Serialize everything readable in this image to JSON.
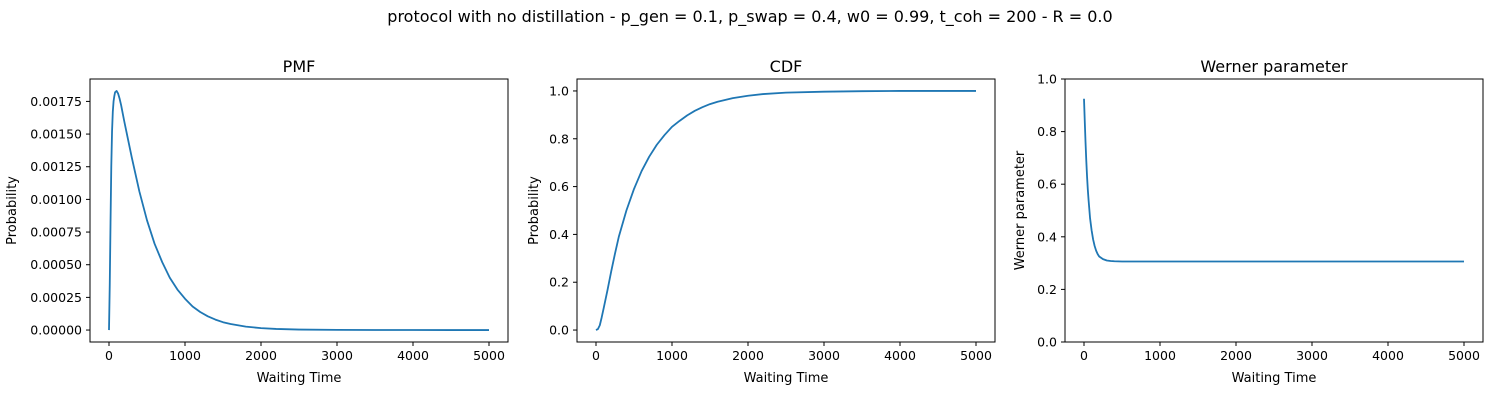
{
  "figure_title": "protocol with no distillation - p_gen = 0.1, p_swap = 0.4, w0 = 0.99, t_coh = 200 - R = 0.0",
  "line_color": "#1f77b4",
  "chart_data": [
    {
      "type": "line",
      "title": "PMF",
      "xlabel": "Waiting Time",
      "ylabel": "Probability",
      "xlim": [
        -250,
        5250
      ],
      "ylim": [
        -9.15e-05,
        0.0019215
      ],
      "xticks": [
        0,
        1000,
        2000,
        3000,
        4000,
        5000
      ],
      "xtick_labels": [
        "0",
        "1000",
        "2000",
        "3000",
        "4000",
        "5000"
      ],
      "yticks": [
        0,
        0.00025,
        0.0005,
        0.00075,
        0.001,
        0.00125,
        0.0015,
        0.00175
      ],
      "ytick_labels": [
        "0.00000",
        "0.00025",
        "0.00050",
        "0.00075",
        "0.00100",
        "0.00125",
        "0.00150",
        "0.00175"
      ],
      "series": [
        {
          "x": [
            0,
            10,
            20,
            30,
            40,
            50,
            60,
            70,
            80,
            100,
            120,
            140,
            160,
            180,
            200,
            250,
            300,
            350,
            400,
            450,
            500,
            600,
            700,
            800,
            900,
            1000,
            1100,
            1200,
            1300,
            1400,
            1500,
            1600,
            1800,
            2000,
            2200,
            2500,
            3000,
            3500,
            4000,
            4500,
            5000
          ],
          "y": [
            0,
            0.00035,
            0.00082,
            0.00125,
            0.00152,
            0.00167,
            0.00175,
            0.00179,
            0.00182,
            0.00183,
            0.00181,
            0.00177,
            0.00172,
            0.00166,
            0.0016,
            0.00146,
            0.00132,
            0.00119,
            0.00106,
            0.00095,
            0.00084,
            0.00066,
            0.00052,
            0.0004,
            0.00031,
            0.00024,
            0.00018,
            0.000138,
            0.000105,
            8e-05,
            6e-05,
            4.6e-05,
            2.6e-05,
            1.5e-05,
            8.5e-06,
            3.8e-06,
            1e-06,
            3e-07,
            1e-07,
            0,
            0
          ]
        }
      ]
    },
    {
      "type": "line",
      "title": "CDF",
      "xlabel": "Waiting Time",
      "ylabel": "Probability",
      "xlim": [
        -250,
        5250
      ],
      "ylim": [
        -0.05,
        1.05
      ],
      "xticks": [
        0,
        1000,
        2000,
        3000,
        4000,
        5000
      ],
      "xtick_labels": [
        "0",
        "1000",
        "2000",
        "3000",
        "4000",
        "5000"
      ],
      "yticks": [
        0,
        0.2,
        0.4,
        0.6,
        0.8,
        1.0
      ],
      "ytick_labels": [
        "0.0",
        "0.2",
        "0.4",
        "0.6",
        "0.8",
        "1.0"
      ],
      "series": [
        {
          "x": [
            0,
            25,
            50,
            75,
            100,
            150,
            200,
            250,
            300,
            400,
            500,
            600,
            700,
            800,
            900,
            1000,
            1100,
            1200,
            1300,
            1400,
            1500,
            1600,
            1800,
            2000,
            2200,
            2500,
            3000,
            3500,
            4000,
            4500,
            5000
          ],
          "y": [
            0,
            0.004,
            0.02,
            0.053,
            0.09,
            0.165,
            0.245,
            0.32,
            0.39,
            0.5,
            0.59,
            0.665,
            0.725,
            0.775,
            0.815,
            0.85,
            0.875,
            0.898,
            0.917,
            0.932,
            0.945,
            0.955,
            0.97,
            0.98,
            0.987,
            0.993,
            0.997,
            0.999,
            1.0,
            1.0,
            1.0
          ]
        }
      ]
    },
    {
      "type": "line",
      "title": "Werner parameter",
      "xlabel": "Waiting Time",
      "ylabel": "Werner parameter",
      "xlim": [
        -250,
        5250
      ],
      "ylim": [
        0,
        1
      ],
      "xticks": [
        0,
        1000,
        2000,
        3000,
        4000,
        5000
      ],
      "xtick_labels": [
        "0",
        "1000",
        "2000",
        "3000",
        "4000",
        "5000"
      ],
      "yticks": [
        0,
        0.2,
        0.4,
        0.6,
        0.8,
        1.0
      ],
      "ytick_labels": [
        "0.0",
        "0.2",
        "0.4",
        "0.6",
        "0.8",
        "1.0"
      ],
      "series": [
        {
          "x": [
            0,
            10,
            20,
            30,
            40,
            50,
            60,
            80,
            100,
            120,
            140,
            160,
            180,
            200,
            250,
            300,
            350,
            400,
            500,
            600,
            800,
            1000,
            2000,
            3000,
            4000,
            5000
          ],
          "y": [
            0.925,
            0.84,
            0.76,
            0.69,
            0.63,
            0.58,
            0.54,
            0.47,
            0.425,
            0.39,
            0.365,
            0.347,
            0.334,
            0.325,
            0.315,
            0.31,
            0.308,
            0.307,
            0.306,
            0.306,
            0.306,
            0.306,
            0.306,
            0.306,
            0.306,
            0.306
          ]
        }
      ]
    }
  ]
}
